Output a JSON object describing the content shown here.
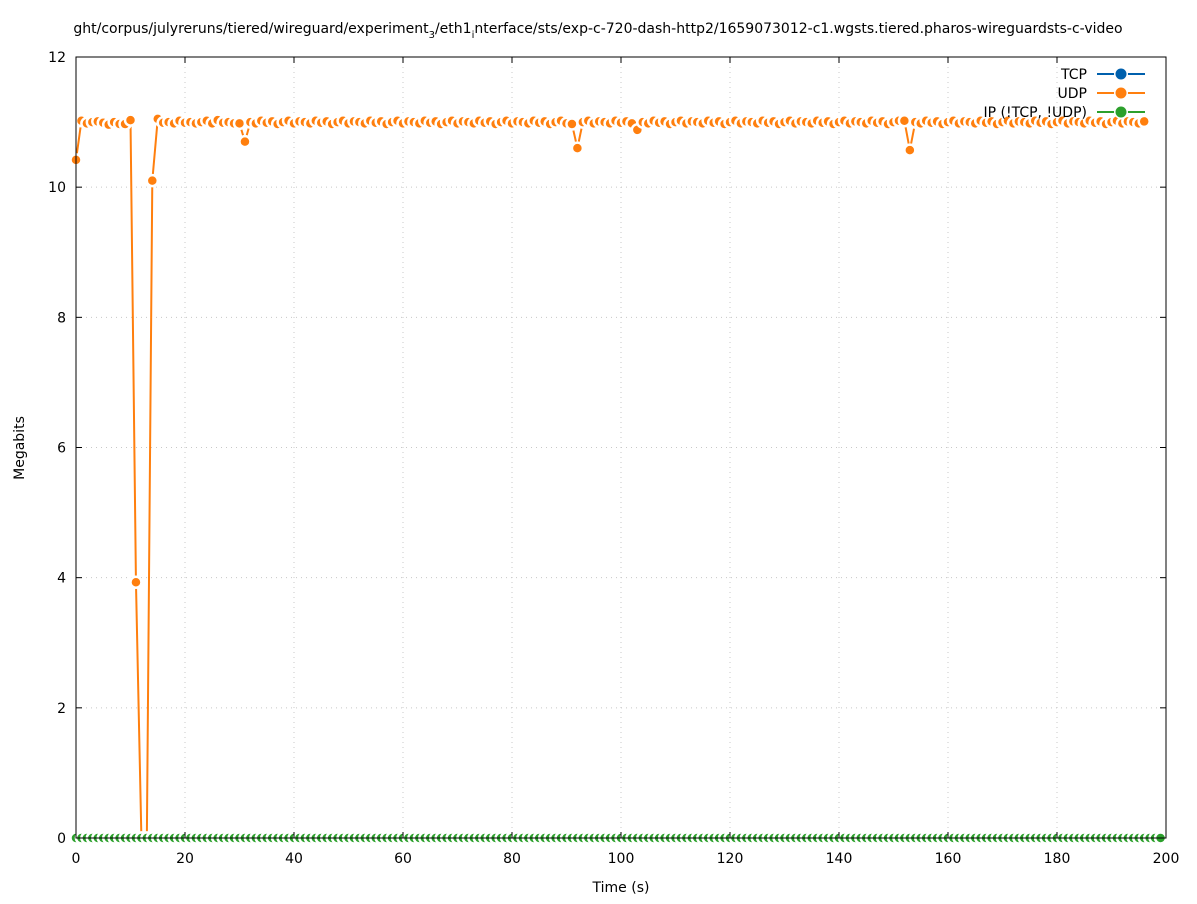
{
  "chart_data": {
    "type": "line",
    "title": {
      "prefix": "ght/corpus/julyreruns/tiered/wireguard/experiment",
      "sub1": "3",
      "mid": "/eth1",
      "sub2": "i",
      "suffix": "nterface/sts/exp-c-720-dash-http2/1659073012-c1.wgsts.tiered.pharos-wireguardsts-c-video"
    },
    "xlabel": "Time (s)",
    "ylabel": "Megabits",
    "xlim": [
      0,
      200
    ],
    "ylim": [
      0,
      12
    ],
    "xticks": [
      0,
      20,
      40,
      60,
      80,
      100,
      120,
      140,
      160,
      180,
      200
    ],
    "yticks": [
      0,
      2,
      4,
      6,
      8,
      10,
      12
    ],
    "grid": true,
    "legend_placement": "top-right",
    "series": [
      {
        "name": "TCP",
        "color": "#0060ad",
        "values": []
      },
      {
        "name": "UDP",
        "color": "#ff7f0e",
        "x_start": 0,
        "x_step": 1,
        "values": [
          10.42,
          11.02,
          10.98,
          11.0,
          11.01,
          10.99,
          10.96,
          11.0,
          10.97,
          10.97,
          11.03,
          3.93,
          0,
          0,
          10.1,
          11.05,
          10.99,
          11.0,
          10.98,
          11.02,
          10.99,
          11.0,
          10.98,
          11.0,
          11.02,
          10.98,
          11.03,
          10.99,
          11.0,
          10.98,
          10.98,
          10.7,
          11.0,
          10.98,
          11.02,
          10.99,
          11.01,
          10.97,
          11.0,
          11.02,
          10.98,
          11.01,
          11.0,
          10.98,
          11.02,
          10.99,
          11.01,
          10.97,
          11.0,
          11.02,
          10.98,
          11.01,
          11.0,
          10.98,
          11.02,
          10.99,
          11.01,
          10.97,
          11.0,
          11.02,
          10.98,
          11.01,
          11.0,
          10.98,
          11.02,
          10.99,
          11.01,
          10.97,
          11.0,
          11.02,
          10.98,
          11.01,
          11.0,
          10.98,
          11.02,
          10.99,
          11.01,
          10.97,
          11.0,
          11.02,
          10.98,
          11.01,
          11.0,
          10.98,
          11.02,
          10.99,
          11.01,
          10.97,
          11.0,
          11.02,
          10.98,
          10.97,
          10.6,
          11.0,
          11.02,
          10.98,
          11.01,
          11.0,
          10.98,
          11.02,
          10.99,
          11.01,
          10.98,
          10.88,
          11.0,
          10.98,
          11.02,
          10.99,
          11.01,
          10.97,
          11.0,
          11.02,
          10.98,
          11.01,
          11.0,
          10.98,
          11.02,
          10.99,
          11.01,
          10.97,
          11.0,
          11.02,
          10.98,
          11.01,
          11.0,
          10.98,
          11.02,
          10.99,
          11.01,
          10.97,
          11.0,
          11.02,
          10.98,
          11.01,
          11.0,
          10.98,
          11.02,
          10.99,
          11.01,
          10.97,
          11.0,
          11.02,
          10.98,
          11.01,
          11.0,
          10.98,
          11.02,
          10.99,
          11.01,
          10.97,
          11.0,
          11.02,
          11.02,
          10.57,
          11.0,
          10.98,
          11.02,
          10.99,
          11.01,
          10.97,
          11.0,
          11.02,
          10.98,
          11.01,
          11.0,
          10.98,
          11.02,
          10.99,
          11.01,
          10.97,
          11.0,
          11.02,
          10.98,
          11.01,
          11.0,
          10.98,
          11.02,
          10.99,
          11.01,
          10.97,
          11.0,
          11.02,
          10.98,
          11.01,
          11.0,
          10.98,
          11.02,
          10.99,
          11.01,
          10.97,
          11.0,
          11.02,
          10.98,
          11.01,
          11.0,
          10.98,
          11.01
        ]
      },
      {
        "name": "IP (!TCP, !UDP)",
        "color": "#2ca02c",
        "x_start": 0,
        "x_step": 1,
        "constant_value": 0,
        "count": 200
      }
    ]
  }
}
